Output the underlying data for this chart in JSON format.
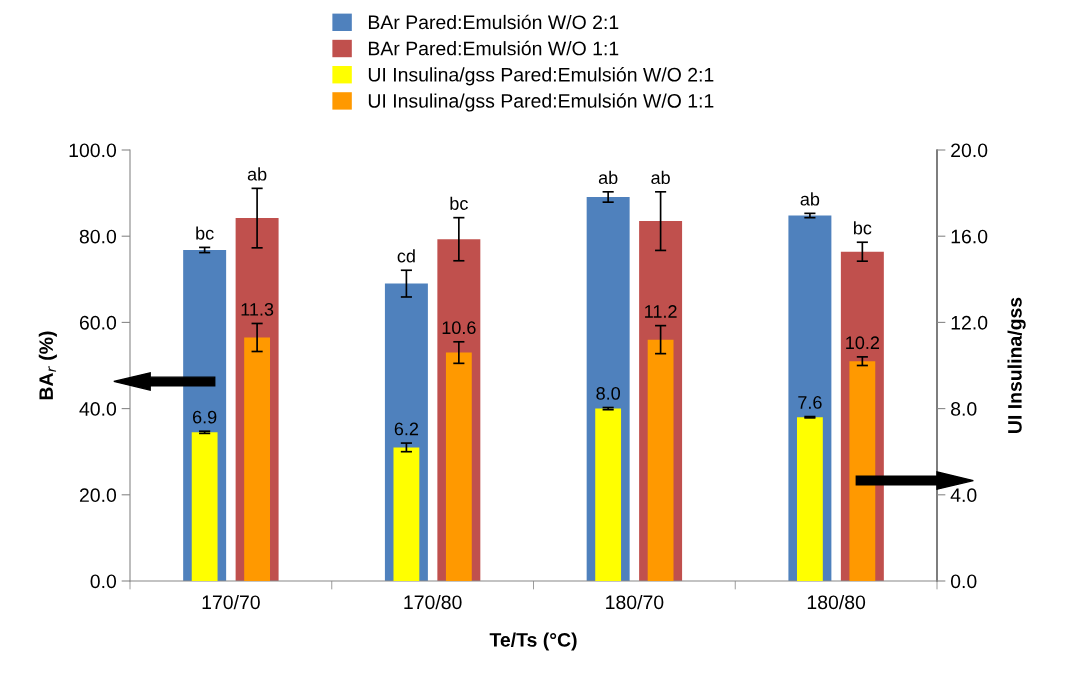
{
  "chart_data": {
    "type": "bar",
    "xlabel": "Te/Ts (°C)",
    "ylabel": "BA$_{r}$ (%)",
    "y2label": "UI Insulina/gss",
    "categories": [
      "170/70",
      "170/80",
      "180/70",
      "180/80"
    ],
    "series": [
      {
        "name": "BAr Pared:Emulsión W/O 2:1",
        "color": "#4f81bd",
        "values": [
          76.8,
          69.0,
          89.1,
          84.8
        ],
        "errors": [
          0.6,
          3.1,
          1.2,
          0.5
        ],
        "value_labels": [
          "bc",
          "cd",
          "ab",
          "ab"
        ]
      },
      {
        "name": "BAr Pared:Emulsión W/O 1:1",
        "color": "#c0504d",
        "values": [
          84.2,
          79.3,
          83.5,
          76.4
        ],
        "errors": [
          6.9,
          5.0,
          6.8,
          2.2
        ],
        "value_labels": [
          "ab",
          "bc",
          "ab",
          "bc"
        ]
      },
      {
        "name": "UI Insulina/gss Pared:Emulsión W/O 2:1",
        "color": "#ffff00",
        "axis": "y2",
        "values": [
          6.9,
          6.2,
          8.0,
          7.6
        ],
        "errors": [
          0.05,
          0.2,
          0.05,
          0.03
        ],
        "value_labels": [
          "6.9",
          "6.2",
          "8.0",
          "7.6"
        ]
      },
      {
        "name": "UI Insulina/gss Pared:Emulsión W/O 1:1",
        "color": "#ff9900",
        "axis": "y2",
        "values": [
          11.3,
          10.6,
          11.2,
          10.2
        ],
        "errors": [
          0.65,
          0.5,
          0.65,
          0.2
        ],
        "value_labels": [
          "11.3",
          "10.6",
          "11.2",
          "10.2"
        ]
      }
    ],
    "ylim": [
      0,
      100
    ],
    "yticks": [
      {
        "value": 0,
        "label": "0.0"
      },
      {
        "value": 20,
        "label": "20.0"
      },
      {
        "value": 40,
        "label": "40.0"
      },
      {
        "value": 60,
        "label": "60.0"
      },
      {
        "value": 80,
        "label": "80.0"
      },
      {
        "value": 100,
        "label": "100.0"
      }
    ],
    "y2lim": [
      0,
      20
    ],
    "y2ticks": [
      {
        "value": 0,
        "label": "0.0"
      },
      {
        "value": 4,
        "label": "4.0"
      },
      {
        "value": 8,
        "label": "8.0"
      },
      {
        "value": 12,
        "label": "12.0"
      },
      {
        "value": 16,
        "label": "16.0"
      },
      {
        "value": 20,
        "label": "20.0"
      }
    ],
    "grid": false,
    "legend": "top"
  }
}
